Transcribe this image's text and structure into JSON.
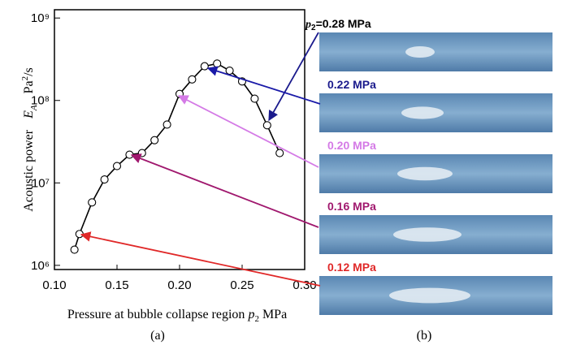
{
  "chart_data": {
    "type": "line",
    "x": [
      0.116,
      0.12,
      0.13,
      0.14,
      0.15,
      0.16,
      0.17,
      0.18,
      0.19,
      0.2,
      0.21,
      0.22,
      0.23,
      0.24,
      0.25,
      0.26,
      0.27,
      0.28
    ],
    "values": [
      1550000,
      2400000,
      5800000,
      11000000,
      16000000,
      22000000,
      23000000,
      33000000,
      51000000,
      120000000,
      180000000,
      260000000,
      280000000,
      230000000,
      170000000,
      105000000,
      50000000,
      23000000
    ],
    "color": "#000000",
    "log_y": true,
    "xlim": [
      0.1,
      0.3
    ],
    "xticks": [
      {
        "value": 0.1,
        "label": "0.10"
      },
      {
        "value": 0.15,
        "label": "0.15"
      },
      {
        "value": 0.2,
        "label": "0.20"
      },
      {
        "value": 0.25,
        "label": "0.25"
      },
      {
        "value": 0.3,
        "label": "0.30"
      }
    ],
    "ylim": [
      890000,
      1260000000
    ],
    "yticks": [
      {
        "value": 1000000,
        "label": "10⁶"
      },
      {
        "value": 10000000,
        "label": "10⁷"
      },
      {
        "value": 100000000,
        "label": "10⁸"
      },
      {
        "value": 1000000000,
        "label": "10⁹"
      }
    ],
    "xlabel": {
      "text": "Pressure at bubble collapse region",
      "symbol": "p",
      "subscript": "2",
      "unit": "MPa"
    },
    "ylabel": {
      "text": "Acoustic power",
      "symbol": "E",
      "subscript": "A",
      "unit": "Pa",
      "unit_superscript": "2",
      "unit_rest": "/s"
    },
    "caption": "(a)"
  },
  "panel_b": {
    "caption": "(b)",
    "images": [
      {
        "symbol": "p",
        "subscript": "2",
        "label": "=0.28 MPa",
        "color": "#000000"
      },
      {
        "label": "0.22 MPa",
        "color": "#1a1a8c"
      },
      {
        "label": "0.20 MPa",
        "color": "#d47ae6"
      },
      {
        "label": "0.16 MPa",
        "color": "#a0186e"
      },
      {
        "label": "0.12 MPa",
        "color": "#e02828"
      }
    ]
  }
}
